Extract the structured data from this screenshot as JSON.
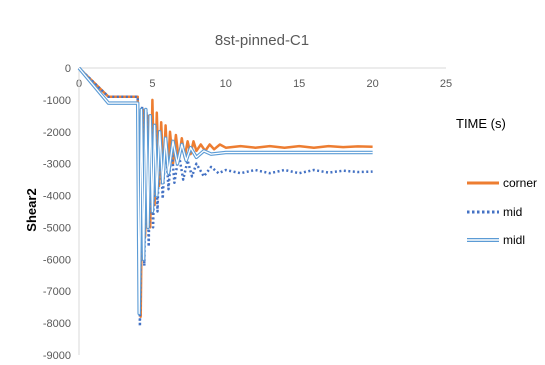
{
  "chart_data": {
    "type": "line",
    "title": "8st-pinned-C1",
    "xlabel": "TIME (s)",
    "ylabel": "Shear2",
    "xlim": [
      0,
      25
    ],
    "ylim": [
      -9000,
      0
    ],
    "xticks": [
      "0",
      "5",
      "10",
      "15",
      "20",
      "25"
    ],
    "yticks": [
      "0",
      "-1000",
      "-2000",
      "-3000",
      "-4000",
      "-5000",
      "-6000",
      "-7000",
      "-8000",
      "-9000"
    ],
    "grid": false,
    "legend_position": "right",
    "series": [
      {
        "name": "corner",
        "color": "#ed7d31",
        "style": "solid",
        "x": [
          0,
          2.0,
          4.0,
          4.2,
          4.35,
          4.5,
          4.7,
          4.85,
          5.0,
          5.15,
          5.3,
          5.45,
          5.6,
          5.75,
          5.9,
          6.05,
          6.2,
          6.4,
          6.6,
          6.8,
          7.0,
          7.2,
          7.4,
          7.6,
          7.8,
          8.0,
          8.3,
          8.6,
          8.9,
          9.2,
          9.6,
          10.0,
          11.0,
          12.0,
          13.0,
          14.0,
          15.0,
          16.0,
          17.0,
          18.0,
          19.0,
          20.0
        ],
        "y": [
          0,
          -900,
          -900,
          -7800,
          -1300,
          -5300,
          -1500,
          -5000,
          -1000,
          -4300,
          -1400,
          -3700,
          -1700,
          -3400,
          -1800,
          -3200,
          -2000,
          -3000,
          -2100,
          -2900,
          -2200,
          -2800,
          -2300,
          -2700,
          -2300,
          -2600,
          -2400,
          -2600,
          -2400,
          -2550,
          -2400,
          -2500,
          -2450,
          -2500,
          -2450,
          -2500,
          -2450,
          -2500,
          -2450,
          -2480,
          -2460,
          -2470
        ]
      },
      {
        "name": "mid",
        "color": "#4472c4",
        "style": "dotted",
        "x": [
          0,
          2.0,
          4.0,
          4.15,
          4.3,
          4.45,
          4.6,
          4.75,
          4.9,
          5.05,
          5.2,
          5.35,
          5.5,
          5.7,
          5.9,
          6.1,
          6.3,
          6.5,
          6.8,
          7.1,
          7.4,
          7.7,
          8.0,
          8.5,
          9.0,
          9.5,
          10.0,
          11.0,
          12.0,
          13.0,
          14.0,
          15.0,
          16.0,
          17.0,
          18.0,
          19.0,
          20.0
        ],
        "y": [
          0,
          -900,
          -900,
          -8100,
          -1200,
          -6200,
          -1400,
          -5600,
          -1600,
          -5000,
          -1800,
          -4500,
          -2000,
          -4100,
          -2300,
          -3800,
          -2500,
          -3600,
          -2700,
          -3500,
          -2900,
          -3400,
          -3000,
          -3400,
          -3100,
          -3300,
          -3200,
          -3300,
          -3200,
          -3300,
          -3200,
          -3300,
          -3200,
          -3280,
          -3220,
          -3260,
          -3250
        ]
      },
      {
        "name": "midl",
        "color": "#5b9bd5",
        "style": "double",
        "x": [
          0,
          2.0,
          4.0,
          4.1,
          4.25,
          4.4,
          4.55,
          4.7,
          4.85,
          5.0,
          5.15,
          5.3,
          5.5,
          5.7,
          5.9,
          6.1,
          6.4,
          6.7,
          7.0,
          7.3,
          7.6,
          8.0,
          8.5,
          9.0,
          10.0,
          11.0,
          12.0,
          13.0,
          14.0,
          15.0,
          16.0,
          17.0,
          18.0,
          19.0,
          20.0
        ],
        "y": [
          0,
          -1100,
          -1100,
          -7700,
          -1300,
          -6000,
          -1300,
          -5000,
          -1500,
          -4500,
          -1800,
          -4000,
          -2000,
          -3600,
          -2200,
          -3300,
          -2300,
          -3000,
          -2400,
          -2900,
          -2500,
          -2800,
          -2600,
          -2700,
          -2650,
          -2650,
          -2650,
          -2650,
          -2650,
          -2650,
          -2650,
          -2650,
          -2650,
          -2650,
          -2650
        ]
      }
    ]
  }
}
